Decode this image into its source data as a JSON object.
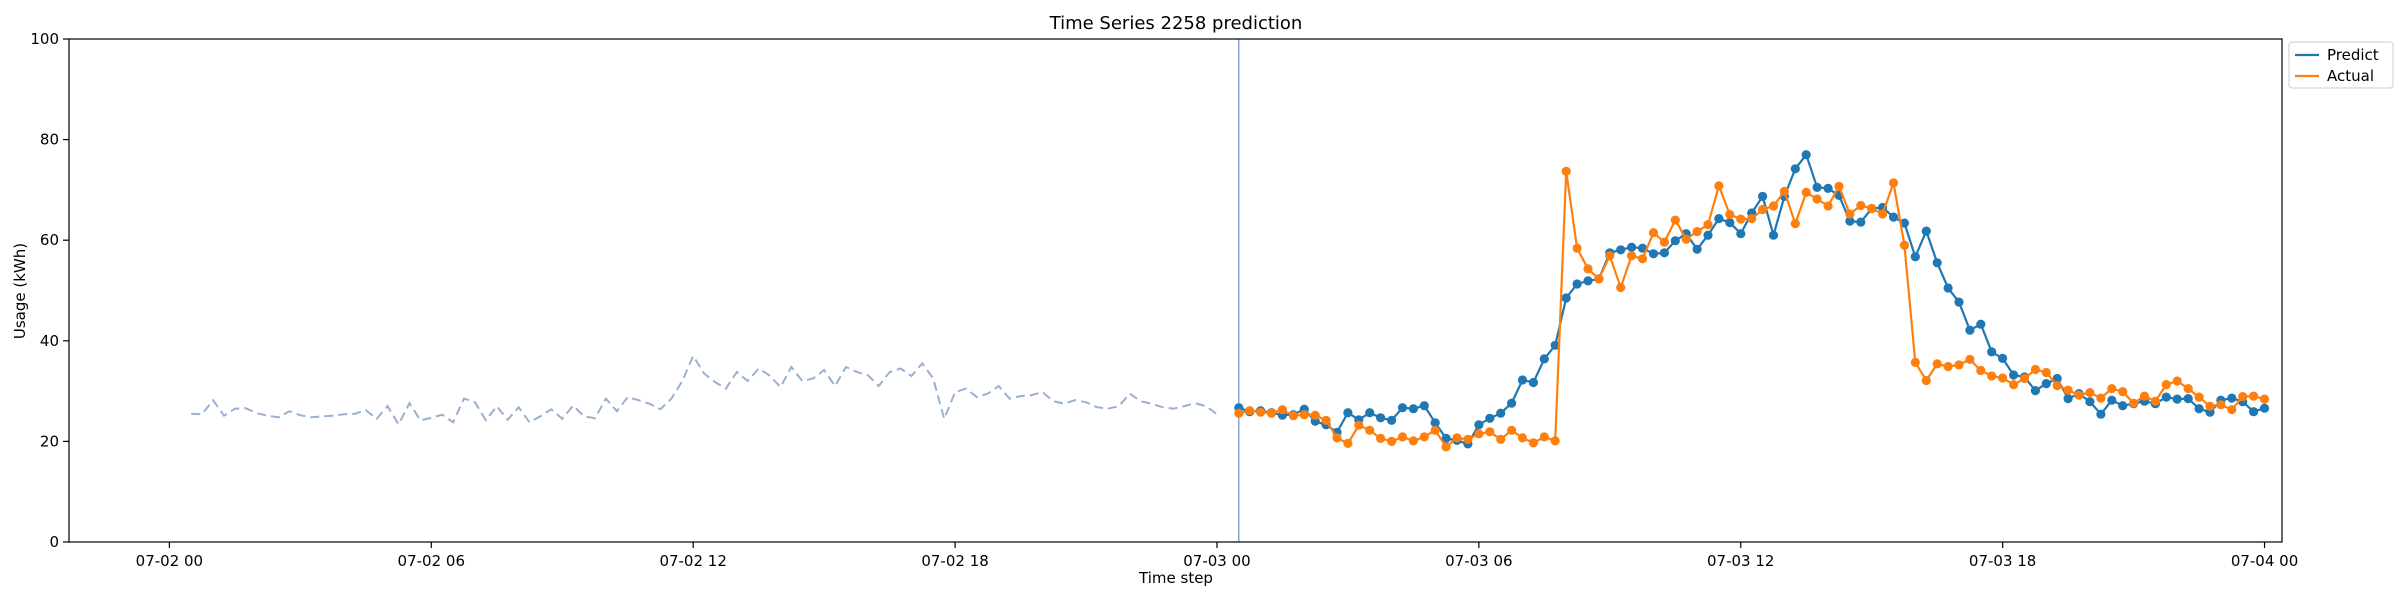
{
  "chart_data": {
    "type": "line",
    "title": "Time Series 2258 prediction",
    "xlabel": "Time step",
    "ylabel": "Usage (kWh)",
    "ylim": [
      0,
      100
    ],
    "yticks": [
      0,
      20,
      40,
      60,
      80,
      100
    ],
    "x_unit": "hours since 07-02 00:00",
    "xlim": [
      -2.3,
      48.4
    ],
    "xticks": [
      {
        "value": 0,
        "label": "07-02 00"
      },
      {
        "value": 6,
        "label": "07-02 06"
      },
      {
        "value": 12,
        "label": "07-02 12"
      },
      {
        "value": 18,
        "label": "07-02 18"
      },
      {
        "value": 24,
        "label": "07-03 00"
      },
      {
        "value": 30,
        "label": "07-03 06"
      },
      {
        "value": 36,
        "label": "07-03 12"
      },
      {
        "value": 42,
        "label": "07-03 18"
      },
      {
        "value": 48,
        "label": "07-04 00"
      }
    ],
    "grid": false,
    "legend_position": "top-right outside",
    "forecast_start_x": 24.5,
    "history": {
      "color": "#9ab0d0",
      "style": "dashed",
      "start_x": 0.5,
      "step": 0.25,
      "values": [
        25.5,
        25.4,
        28.2,
        25.1,
        26.5,
        26.6,
        25.6,
        25.1,
        24.8,
        26.0,
        25.2,
        24.8,
        25.0,
        25.1,
        25.4,
        25.5,
        26.2,
        24.5,
        27.0,
        23.4,
        27.6,
        24.2,
        24.7,
        25.3,
        23.8,
        28.5,
        27.8,
        24.2,
        27.0,
        24.3,
        26.8,
        23.8,
        25.0,
        26.4,
        24.5,
        27.1,
        25.0,
        24.6,
        28.5,
        26.0,
        28.8,
        28.2,
        27.5,
        26.4,
        28.5,
        32.0,
        37.0,
        33.5,
        31.8,
        30.5,
        33.8,
        32.0,
        34.5,
        33.1,
        30.8,
        34.8,
        32.0,
        32.5,
        34.2,
        31.0,
        34.8,
        33.8,
        33.2,
        31.0,
        33.8,
        34.5,
        33.0,
        35.5,
        32.5,
        24.5,
        29.8,
        30.5,
        28.8,
        29.5,
        31.0,
        28.5,
        29.0,
        29.2,
        29.8,
        28.0,
        27.5,
        28.2,
        27.8,
        26.8,
        26.5,
        27.0,
        29.5,
        28.0,
        27.5,
        26.8,
        26.5,
        27.0,
        27.6,
        27.0,
        25.4
      ]
    },
    "series": [
      {
        "name": "Predict",
        "color": "#1f77b4",
        "start_x": 24.5,
        "step": 0.25,
        "values": [
          26.7,
          25.9,
          26.1,
          25.7,
          25.2,
          25.3,
          26.4,
          24.0,
          23.3,
          21.8,
          25.7,
          24.3,
          25.7,
          24.7,
          24.2,
          26.7,
          26.5,
          27.1,
          23.7,
          20.6,
          20.2,
          19.5,
          23.3,
          24.6,
          25.6,
          27.6,
          32.2,
          31.7,
          36.4,
          39.1,
          48.5,
          51.3,
          51.9,
          52.3,
          57.5,
          58.1,
          58.6,
          58.4,
          57.3,
          57.5,
          59.9,
          61.3,
          58.2,
          61.0,
          64.3,
          63.5,
          61.3,
          65.4,
          68.7,
          61.0,
          68.7,
          74.2,
          77.0,
          70.5,
          70.3,
          68.9,
          63.8,
          63.6,
          66.3,
          66.5,
          64.6,
          63.4,
          56.7,
          61.8,
          55.5,
          50.5,
          47.7,
          42.1,
          43.3,
          37.8,
          36.5,
          33.2,
          32.8,
          30.1,
          31.5,
          32.5,
          28.5,
          29.5,
          27.9,
          25.4,
          28.2,
          27.1,
          27.5,
          28.0,
          27.5,
          28.8,
          28.4,
          28.5,
          26.5,
          25.8,
          28.2,
          28.6,
          27.9,
          25.9,
          26.6
        ]
      },
      {
        "name": "Actual",
        "color": "#ff7f0e",
        "start_x": 24.5,
        "step": 0.25,
        "values": [
          25.6,
          26.1,
          25.8,
          25.6,
          26.3,
          25.1,
          25.3,
          25.2,
          24.2,
          20.7,
          19.6,
          23.2,
          22.2,
          20.6,
          20.0,
          20.9,
          20.1,
          20.9,
          22.2,
          18.9,
          20.7,
          20.4,
          21.5,
          21.9,
          20.4,
          22.2,
          20.7,
          19.7,
          20.9,
          20.1,
          73.7,
          58.4,
          54.3,
          52.3,
          56.9,
          50.6,
          56.9,
          56.3,
          61.5,
          59.6,
          64.0,
          60.2,
          61.7,
          63.1,
          70.8,
          65.1,
          64.2,
          64.3,
          66.1,
          66.8,
          69.7,
          63.3,
          69.5,
          68.2,
          66.8,
          70.7,
          65.2,
          66.9,
          66.3,
          65.2,
          71.4,
          59.0,
          35.7,
          32.1,
          35.4,
          34.9,
          35.2,
          36.3,
          34.1,
          33.0,
          32.6,
          31.3,
          32.5,
          34.3,
          33.7,
          31.1,
          30.2,
          29.2,
          29.7,
          28.6,
          30.5,
          29.9,
          27.6,
          29.0,
          28.0,
          31.3,
          32.0,
          30.5,
          28.8,
          27.0,
          27.3,
          26.3,
          28.9,
          29.0,
          28.4
        ]
      }
    ]
  }
}
